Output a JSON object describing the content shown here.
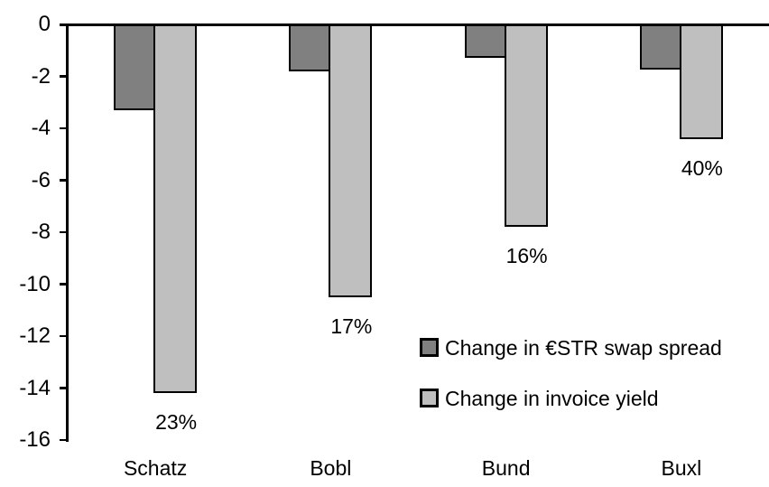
{
  "chart_data": {
    "type": "bar",
    "title": "",
    "categories": [
      "Schatz",
      "Bobl",
      "Bund",
      "Buxl"
    ],
    "series": [
      {
        "name": "Change in €STR swap spread",
        "color": "#808080",
        "values": [
          -3.3,
          -1.8,
          -1.3,
          -1.75
        ]
      },
      {
        "name": "Change in invoice yield",
        "color": "#bfbfbf",
        "values": [
          -14.2,
          -10.5,
          -7.8,
          -4.4
        ]
      }
    ],
    "bar_labels": {
      "series": "Change in invoice yield",
      "values": [
        "23%",
        "17%",
        "16%",
        "40%"
      ]
    },
    "yticks": [
      0,
      -2,
      -4,
      -6,
      -8,
      -10,
      -12,
      -14,
      -16
    ],
    "ylim": [
      -16,
      0
    ],
    "xlabel": "",
    "ylabel": "",
    "grid": false,
    "legend_position": "inside-right",
    "axis_color": "#000000",
    "background_color": "#ffffff"
  }
}
